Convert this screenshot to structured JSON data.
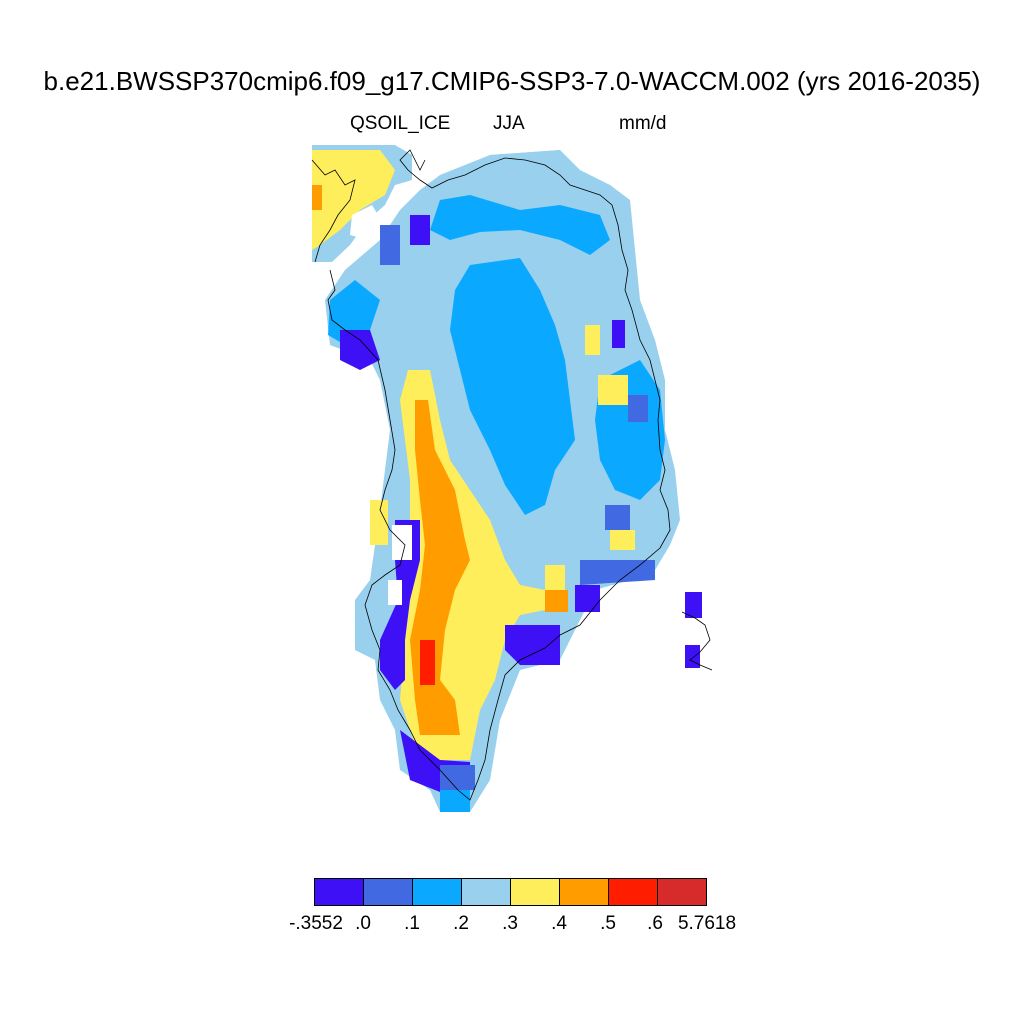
{
  "title": "b.e21.BWSSP370cmip6.f09_g17.CMIP6-SSP3-7.0-WACCM.002 (yrs 2016-2035)",
  "variable": "QSOIL_ICE",
  "season": "JJA",
  "units": "mm/d",
  "colors": {
    "c1": "#3d10f5",
    "c2": "#4169e1",
    "c3": "#0aa9ff",
    "c4": "#98d0ee",
    "c5": "#ffee5c",
    "c6": "#ff9d00",
    "c7": "#ff1d00",
    "c8": "#d72b2b",
    "coast": "#000000"
  },
  "colorbar": {
    "colors": [
      "#3d10f5",
      "#4169e1",
      "#0aa9ff",
      "#98d0ee",
      "#ffee5c",
      "#ff9d00",
      "#ff1d00",
      "#d72b2b"
    ],
    "labels": [
      "-.3552",
      ".0",
      ".1",
      ".2",
      ".3",
      ".4",
      ".5",
      ".6",
      "5.7618"
    ]
  }
}
